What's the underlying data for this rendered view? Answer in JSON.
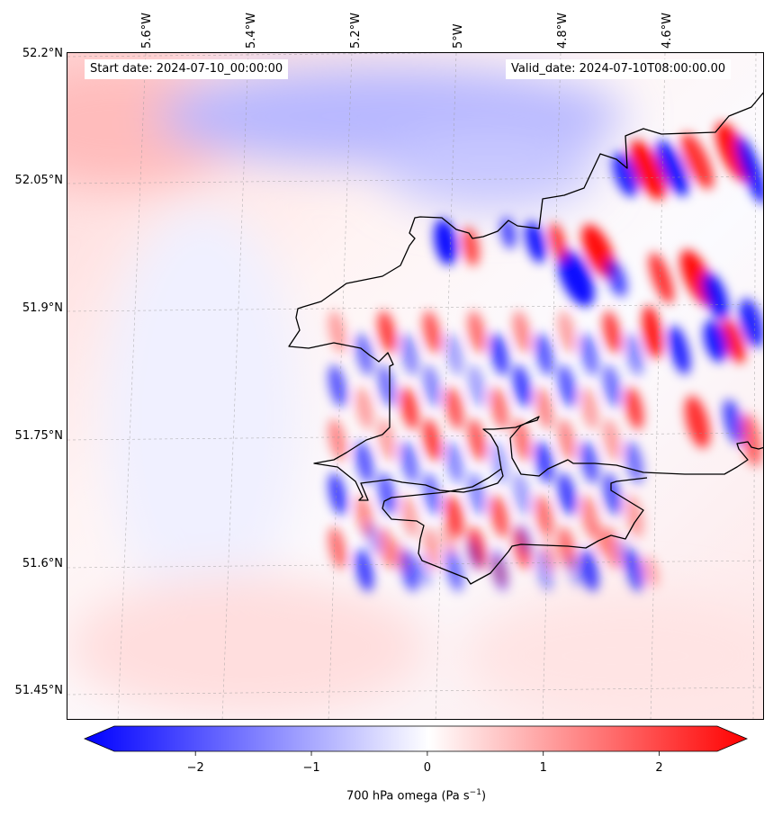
{
  "header": {
    "start_date": "Start date: 2024-07-10_00:00:00",
    "valid_date": "Valid_date: 2024-07-10T08:00:00.00"
  },
  "axes": {
    "lat_labels": [
      "52.2°N",
      "52.05°N",
      "51.9°N",
      "51.75°N",
      "51.6°N",
      "51.45°N"
    ],
    "lon_labels": [
      "5.6°W",
      "5.4°W",
      "5.2°W",
      "5°W",
      "4.8°W",
      "4.6°W"
    ]
  },
  "colorbar": {
    "title_main": "700 hPa omega (Pa s",
    "title_exp": "−1",
    "title_close": ")",
    "ticks": [
      "−2",
      "−1",
      "0",
      "1",
      "2"
    ],
    "min": -2.7,
    "max": 2.5,
    "tick_values": [
      -2,
      -1,
      0,
      1,
      2
    ]
  },
  "colors": {
    "coastline": "#000000",
    "negative": "#0000ff",
    "positive": "#ff0000",
    "neutral": "#ffffff"
  }
}
